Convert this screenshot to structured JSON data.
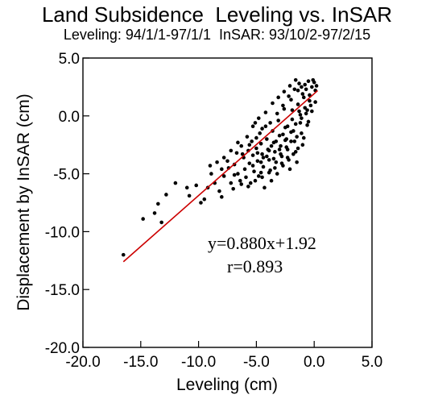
{
  "chart_data": {
    "type": "scatter",
    "title": "Land Subsidence  Leveling vs. InSAR",
    "subtitle": "Leveling: 94/1/1-97/1/1  InSAR: 93/10/2-97/2/15",
    "xlabel": "Leveling (cm)",
    "ylabel": "Displacement by InSAR (cm)",
    "xlim": [
      -20.0,
      5.0
    ],
    "ylim": [
      -20.0,
      5.0
    ],
    "xticks": [
      "-20.0",
      "-15.0",
      "-10.0",
      "-5.0",
      "0.0",
      "5.0"
    ],
    "yticks": [
      "-20.0",
      "-15.0",
      "-10.0",
      "-5.0",
      "0.0",
      "5.0"
    ],
    "marker_color": "#000000",
    "fit": {
      "slope": 0.88,
      "intercept": 1.92,
      "x_range": [
        -16.5,
        0.3
      ],
      "color": "#cc0000",
      "equation_label": "y=0.880x+1.92",
      "r_label": "r=0.893"
    },
    "points": [
      [
        -16.5,
        -12.0
      ],
      [
        -14.8,
        -8.9
      ],
      [
        -13.8,
        -8.4
      ],
      [
        -13.2,
        -9.2
      ],
      [
        -13.5,
        -7.6
      ],
      [
        -12.8,
        -6.8
      ],
      [
        -12.0,
        -5.8
      ],
      [
        -11.0,
        -6.2
      ],
      [
        -10.2,
        -6.0
      ],
      [
        -10.8,
        -6.9
      ],
      [
        -9.8,
        -7.5
      ],
      [
        -9.5,
        -7.2
      ],
      [
        -9.2,
        -6.2
      ],
      [
        -9.0,
        -4.3
      ],
      [
        -8.6,
        -5.8
      ],
      [
        -8.2,
        -6.5
      ],
      [
        -8.0,
        -7.0
      ],
      [
        -7.8,
        -5.2
      ],
      [
        -7.5,
        -3.9
      ],
      [
        -7.4,
        -4.5
      ],
      [
        -7.2,
        -5.8
      ],
      [
        -7.0,
        -6.3
      ],
      [
        -6.9,
        -4.2
      ],
      [
        -6.7,
        -3.2
      ],
      [
        -6.6,
        -5.0
      ],
      [
        -6.4,
        -5.6
      ],
      [
        -6.3,
        -2.6
      ],
      [
        -6.1,
        -3.6
      ],
      [
        -6.0,
        -4.6
      ],
      [
        -5.9,
        -5.3
      ],
      [
        -5.8,
        -1.8
      ],
      [
        -5.7,
        -3.0
      ],
      [
        -5.6,
        -4.1
      ],
      [
        -5.5,
        -5.8
      ],
      [
        -5.4,
        -2.2
      ],
      [
        -5.3,
        -3.4
      ],
      [
        -5.2,
        -4.8
      ],
      [
        -5.1,
        -0.6
      ],
      [
        -5.0,
        -2.8
      ],
      [
        -4.9,
        -3.9
      ],
      [
        -4.8,
        -5.2
      ],
      [
        -4.7,
        -1.5
      ],
      [
        -4.6,
        -2.4
      ],
      [
        -4.5,
        -3.3
      ],
      [
        -4.4,
        -4.4
      ],
      [
        -4.3,
        -6.2
      ],
      [
        -4.2,
        -0.9
      ],
      [
        -4.1,
        -2.0
      ],
      [
        -4.0,
        -2.9
      ],
      [
        -3.9,
        -3.8
      ],
      [
        -3.8,
        -4.7
      ],
      [
        -3.7,
        -5.6
      ],
      [
        -3.6,
        -1.3
      ],
      [
        -3.5,
        -2.3
      ],
      [
        -3.4,
        -3.1
      ],
      [
        -3.3,
        -4.0
      ],
      [
        -3.2,
        -5.0
      ],
      [
        -3.1,
        -0.4
      ],
      [
        -3.0,
        -1.7
      ],
      [
        -2.9,
        -2.6
      ],
      [
        -2.8,
        -3.5
      ],
      [
        -2.7,
        -4.3
      ],
      [
        -2.6,
        0.6
      ],
      [
        -2.5,
        -1.0
      ],
      [
        -2.4,
        -2.0
      ],
      [
        -2.3,
        -2.9
      ],
      [
        -2.2,
        -3.8
      ],
      [
        -2.1,
        -4.6
      ],
      [
        -2.0,
        1.4
      ],
      [
        -1.9,
        -0.3
      ],
      [
        -1.8,
        -1.3
      ],
      [
        -1.7,
        -2.2
      ],
      [
        -1.6,
        -3.1
      ],
      [
        -1.5,
        -4.0
      ],
      [
        -1.4,
        2.2
      ],
      [
        -1.3,
        0.4
      ],
      [
        -1.2,
        -0.6
      ],
      [
        -1.1,
        -1.5
      ],
      [
        -1.0,
        -2.5
      ],
      [
        -0.9,
        1.6
      ],
      [
        -0.8,
        2.7
      ],
      [
        -0.7,
        0.2
      ],
      [
        -0.6,
        -0.8
      ],
      [
        -0.5,
        3.0
      ],
      [
        -0.4,
        1.8
      ],
      [
        -0.3,
        0.9
      ],
      [
        -0.2,
        2.5
      ],
      [
        -0.1,
        3.1
      ],
      [
        0.0,
        2.9
      ],
      [
        0.1,
        2.2
      ],
      [
        0.2,
        2.6
      ],
      [
        -4.6,
        -4.0
      ],
      [
        -3.9,
        -3.0
      ],
      [
        -3.3,
        -2.2
      ],
      [
        -2.7,
        -1.6
      ],
      [
        -2.3,
        -0.9
      ],
      [
        -1.9,
        0.5
      ],
      [
        -1.4,
        1.0
      ],
      [
        -1.0,
        1.9
      ],
      [
        -0.7,
        2.3
      ],
      [
        -4.9,
        -3.2
      ],
      [
        -4.4,
        -3.6
      ],
      [
        -3.7,
        -2.6
      ],
      [
        -3.0,
        -2.9
      ],
      [
        -2.5,
        -2.1
      ],
      [
        -2.0,
        -1.4
      ],
      [
        -1.6,
        -0.7
      ],
      [
        -1.2,
        0.1
      ],
      [
        -0.8,
        0.7
      ],
      [
        -0.4,
        1.3
      ],
      [
        -5.3,
        -4.3
      ],
      [
        -4.6,
        -4.9
      ],
      [
        -4.1,
        -3.5
      ],
      [
        -3.5,
        -3.7
      ],
      [
        -2.9,
        -3.3
      ],
      [
        -2.4,
        -2.7
      ],
      [
        -2.0,
        -2.2
      ],
      [
        -1.5,
        -1.8
      ],
      [
        -1.1,
        -0.2
      ],
      [
        -0.6,
        0.5
      ],
      [
        -6.2,
        -3.3
      ],
      [
        -5.6,
        -2.5
      ],
      [
        -5.0,
        -1.9
      ],
      [
        -4.5,
        -1.1
      ],
      [
        -3.8,
        -0.6
      ],
      [
        -3.2,
        0.2
      ],
      [
        -2.7,
        0.9
      ],
      [
        -2.2,
        1.7
      ],
      [
        -1.7,
        2.3
      ],
      [
        -1.3,
        2.8
      ],
      [
        -7.8,
        -3.6
      ],
      [
        -7.2,
        -3.0
      ],
      [
        -6.6,
        -2.3
      ],
      [
        -6.9,
        -5.1
      ],
      [
        -6.3,
        -5.9
      ],
      [
        -5.7,
        -6.1
      ],
      [
        -5.1,
        -5.6
      ],
      [
        -4.5,
        -5.3
      ],
      [
        -3.9,
        -4.9
      ],
      [
        -3.4,
        -4.5
      ],
      [
        -2.8,
        -4.1
      ],
      [
        -2.3,
        -3.6
      ],
      [
        -1.8,
        -3.3
      ],
      [
        -1.4,
        -2.8
      ],
      [
        -0.9,
        -1.9
      ],
      [
        -0.5,
        -0.5
      ],
      [
        -0.2,
        0.4
      ],
      [
        0.1,
        1.2
      ],
      [
        -8.9,
        -5.0
      ],
      [
        -8.4,
        -4.0
      ],
      [
        -8.0,
        -4.6
      ],
      [
        -5.3,
        -0.9
      ],
      [
        -4.8,
        -0.2
      ],
      [
        -4.2,
        0.3
      ],
      [
        -3.6,
        1.1
      ],
      [
        -3.1,
        1.6
      ],
      [
        -2.6,
        2.1
      ],
      [
        -2.1,
        2.6
      ],
      [
        -1.6,
        3.1
      ],
      [
        -1.1,
        2.5
      ]
    ]
  }
}
